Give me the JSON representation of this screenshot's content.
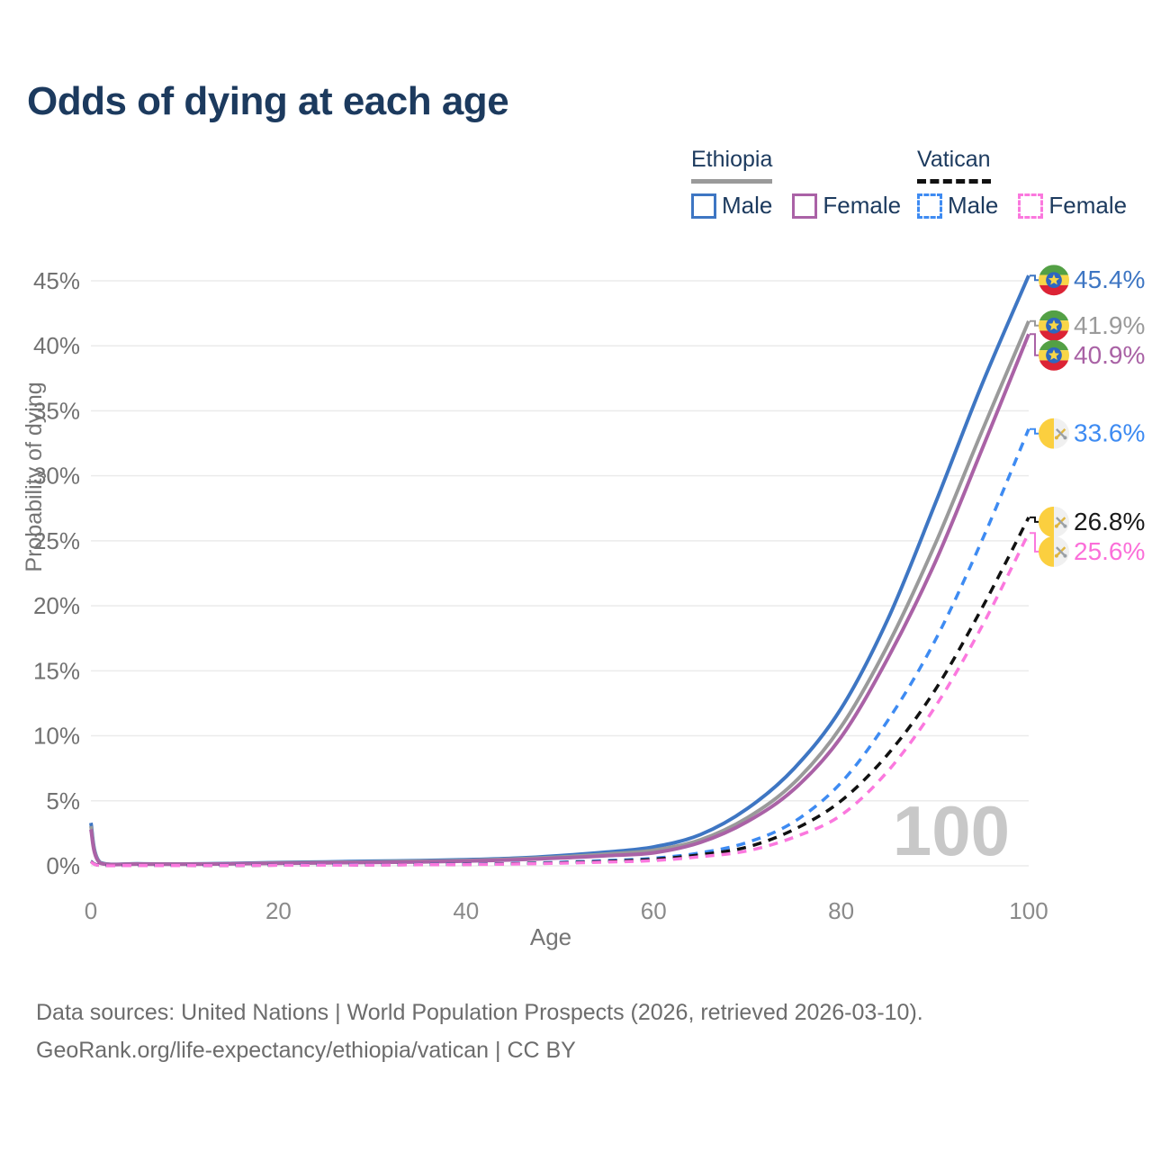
{
  "title": "Odds of dying at each age",
  "legend": {
    "groups": [
      {
        "label": "Ethiopia",
        "line_style": "solid",
        "line_color": "#9a9a9a",
        "items": [
          {
            "label": "Male",
            "color": "#3e76c3",
            "style": "solid"
          },
          {
            "label": "Female",
            "color": "#aa62a6",
            "style": "solid"
          }
        ]
      },
      {
        "label": "Vatican",
        "line_style": "dashed",
        "line_color": "#111111",
        "items": [
          {
            "label": "Male",
            "color": "#3e8bf2",
            "style": "dashed"
          },
          {
            "label": "Female",
            "color": "#fb78de",
            "style": "dashed"
          }
        ]
      }
    ]
  },
  "watermark": "100",
  "footer": {
    "line1": "Data sources: United Nations | World Population Prospects (2026, retrieved 2026-03-10).",
    "line2": "GeoRank.org/life-expectancy/ethiopia/vatican | CC BY"
  },
  "chart_data": {
    "type": "line",
    "title": "Odds of dying at each age",
    "xlabel": "Age",
    "ylabel": "Probability of dying",
    "xlim": [
      0,
      100
    ],
    "ylim": [
      0,
      45
    ],
    "x_ticks": [
      0,
      20,
      40,
      60,
      80,
      100
    ],
    "y_ticks": [
      0,
      5,
      10,
      15,
      20,
      25,
      30,
      35,
      40,
      45
    ],
    "y_tick_labels": [
      "0%",
      "5%",
      "10%",
      "15%",
      "20%",
      "25%",
      "30%",
      "35%",
      "40%",
      "45%"
    ],
    "grid": "horizontal",
    "legend_position": "top-right",
    "ages": [
      0,
      1,
      5,
      10,
      15,
      20,
      25,
      30,
      35,
      40,
      45,
      50,
      55,
      60,
      65,
      70,
      75,
      80,
      85,
      90,
      95,
      100
    ],
    "series": [
      {
        "name": "Ethiopia Male",
        "flag": "ethiopia",
        "color": "#3e76c3",
        "style": "solid",
        "end_label": "45.4%",
        "end_label_color": "#3e76c3",
        "values": [
          3.3,
          0.25,
          0.15,
          0.14,
          0.18,
          0.25,
          0.3,
          0.35,
          0.4,
          0.47,
          0.58,
          0.78,
          1.05,
          1.45,
          2.4,
          4.4,
          7.5,
          12.1,
          19.0,
          27.8,
          37.0,
          45.4
        ]
      },
      {
        "name": "Ethiopia",
        "flag": "ethiopia",
        "color": "#9a9a9a",
        "style": "solid",
        "end_label": "41.9%",
        "end_label_color": "#9a9a9a",
        "values": [
          3.05,
          0.22,
          0.14,
          0.13,
          0.16,
          0.22,
          0.26,
          0.3,
          0.35,
          0.41,
          0.52,
          0.68,
          0.9,
          1.2,
          2.0,
          3.7,
          6.4,
          10.7,
          17.0,
          24.7,
          33.4,
          41.9
        ]
      },
      {
        "name": "Ethiopia Female",
        "flag": "ethiopia",
        "color": "#aa62a6",
        "style": "solid",
        "end_label": "40.9%",
        "end_label_color": "#a962a5",
        "values": [
          2.8,
          0.2,
          0.13,
          0.12,
          0.15,
          0.19,
          0.23,
          0.26,
          0.3,
          0.36,
          0.46,
          0.6,
          0.78,
          1.0,
          1.8,
          3.4,
          5.9,
          9.9,
          16.0,
          23.3,
          32.0,
          40.9
        ]
      },
      {
        "name": "Vatican Male",
        "flag": "vatican",
        "color": "#3e8bf2",
        "style": "dashed",
        "end_label": "33.6%",
        "end_label_color": "#3e8bf2",
        "values": [
          0.35,
          0.03,
          0.02,
          0.02,
          0.04,
          0.06,
          0.07,
          0.08,
          0.1,
          0.13,
          0.18,
          0.27,
          0.4,
          0.58,
          1.0,
          1.8,
          3.4,
          6.4,
          11.2,
          17.3,
          25.0,
          33.6
        ]
      },
      {
        "name": "Vatican",
        "flag": "vatican",
        "color": "#111111",
        "style": "dashed",
        "end_label": "26.8%",
        "end_label_color": "#1a1a1a",
        "values": [
          0.33,
          0.03,
          0.02,
          0.02,
          0.03,
          0.05,
          0.06,
          0.07,
          0.09,
          0.11,
          0.16,
          0.23,
          0.34,
          0.5,
          0.85,
          1.45,
          2.8,
          5.0,
          8.6,
          13.5,
          19.8,
          26.8
        ]
      },
      {
        "name": "Vatican Female",
        "flag": "vatican",
        "color": "#fb78de",
        "style": "dashed",
        "end_label": "25.6%",
        "end_label_color": "#fb6fd9",
        "values": [
          0.3,
          0.02,
          0.02,
          0.02,
          0.03,
          0.04,
          0.05,
          0.06,
          0.08,
          0.1,
          0.14,
          0.2,
          0.29,
          0.4,
          0.7,
          1.15,
          2.2,
          3.9,
          7.3,
          12.2,
          18.4,
          25.6
        ]
      }
    ]
  }
}
